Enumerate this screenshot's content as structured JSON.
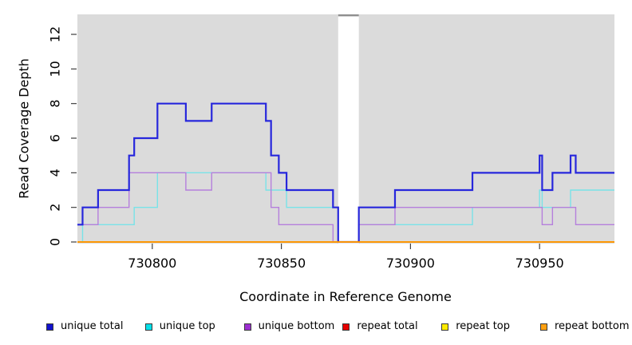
{
  "chart_data": {
    "type": "line",
    "subtype": "step",
    "title": "",
    "xlabel": "Coordinate in Reference Genome",
    "ylabel": "Read Coverage Depth",
    "xlim": [
      730771,
      730979
    ],
    "ylim": [
      0,
      13
    ],
    "x_ticks": [
      730800,
      730850,
      730900,
      730950
    ],
    "y_ticks": [
      0,
      2,
      4,
      6,
      8,
      10,
      12
    ],
    "grid": false,
    "plot_bg_color": "#DBDBDB",
    "gap_region": {
      "x_start": 730872,
      "x_end": 730880,
      "fill": "#FFFFFF",
      "top_bar_color": "#8F8F8F"
    },
    "legend_position": "bottom",
    "series": [
      {
        "name": "unique total",
        "legend_color": "#1212CE",
        "line_color": "#2727DC",
        "line_width": 2.2,
        "steps": [
          [
            730771,
            1
          ],
          [
            730773,
            2
          ],
          [
            730779,
            3
          ],
          [
            730791,
            5
          ],
          [
            730793,
            6
          ],
          [
            730802,
            8
          ],
          [
            730813,
            7
          ],
          [
            730823,
            8
          ],
          [
            730844,
            7
          ],
          [
            730846,
            5
          ],
          [
            730849,
            4
          ],
          [
            730852,
            3
          ],
          [
            730870,
            2
          ],
          [
            730872,
            0
          ],
          [
            730880,
            2
          ],
          [
            730894,
            3
          ],
          [
            730924,
            4
          ],
          [
            730950,
            5
          ],
          [
            730951,
            3
          ],
          [
            730955,
            4
          ],
          [
            730962,
            5
          ],
          [
            730964,
            4
          ],
          [
            730979,
            4
          ]
        ]
      },
      {
        "name": "unique top",
        "legend_color": "#06DFE8",
        "line_color": "#79E3E8",
        "line_width": 1.4,
        "steps": [
          [
            730771,
            0
          ],
          [
            730773,
            1
          ],
          [
            730793,
            2
          ],
          [
            730802,
            4
          ],
          [
            730844,
            3
          ],
          [
            730852,
            2
          ],
          [
            730872,
            0
          ],
          [
            730880,
            1
          ],
          [
            730924,
            2
          ],
          [
            730950,
            3
          ],
          [
            730951,
            2
          ],
          [
            730962,
            3
          ],
          [
            730979,
            3
          ]
        ]
      },
      {
        "name": "unique bottom",
        "legend_color": "#9D2FD1",
        "line_color": "#B57FDC",
        "line_width": 1.4,
        "steps": [
          [
            730771,
            1
          ],
          [
            730779,
            2
          ],
          [
            730791,
            4
          ],
          [
            730813,
            3
          ],
          [
            730823,
            4
          ],
          [
            730846,
            2
          ],
          [
            730849,
            1
          ],
          [
            730870,
            0
          ],
          [
            730880,
            1
          ],
          [
            730894,
            2
          ],
          [
            730951,
            1
          ],
          [
            730955,
            2
          ],
          [
            730964,
            1
          ],
          [
            730979,
            1
          ]
        ]
      },
      {
        "name": "repeat total",
        "legend_color": "#E60000",
        "line_color": "#E60000",
        "line_width": 1.4,
        "steps": [
          [
            730771,
            0
          ],
          [
            730979,
            0
          ]
        ]
      },
      {
        "name": "repeat top",
        "legend_color": "#FFEB00",
        "line_color": "#FFEB00",
        "line_width": 1.4,
        "steps": [
          [
            730771,
            0
          ],
          [
            730979,
            0
          ]
        ]
      },
      {
        "name": "repeat bottom",
        "legend_color": "#FFA010",
        "line_color": "#FF9600",
        "line_width": 1.8,
        "steps": [
          [
            730771,
            0
          ],
          [
            730979,
            0
          ]
        ]
      }
    ]
  }
}
